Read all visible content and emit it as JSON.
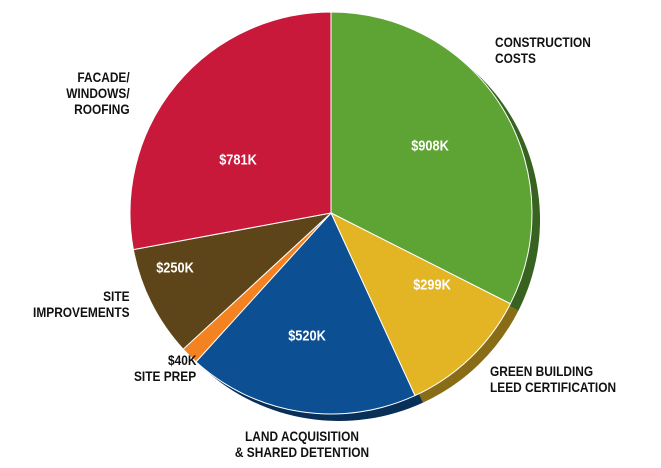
{
  "chart_data": {
    "type": "pie",
    "categories": [
      "CONSTRUCTION\nCOSTS",
      "GREEN BUILDING\nLEED CERTIFICATION",
      "LAND ACQUISITION\n& SHARED DETENTION",
      "SITE PREP",
      "SITE\nIMPROVEMENTS",
      "FACADE/\nWINDOWS/\nROOFING"
    ],
    "values": [
      908,
      299,
      520,
      40,
      250,
      781
    ],
    "value_labels": [
      "$908K",
      "$299K",
      "$520K",
      "$40K",
      "$250K",
      "$781K"
    ],
    "colors": [
      "#5ea435",
      "#e3b424",
      "#0d4f93",
      "#f58220",
      "#5d4519",
      "#c9193b"
    ]
  }
}
